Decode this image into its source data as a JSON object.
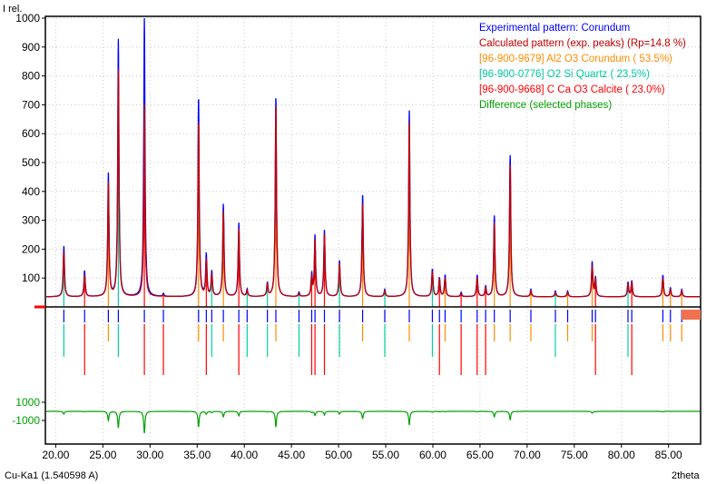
{
  "chart_data": {
    "type": "line",
    "ylabel": "I rel.",
    "xlabel": "2theta",
    "wavelength_label": "Cu-Ka1 (1.540598 A)",
    "xlim": [
      18.9,
      88.4
    ],
    "ylim": [
      0,
      1000
    ],
    "yticks": [
      100,
      200,
      300,
      400,
      500,
      600,
      700,
      800,
      900,
      1000
    ],
    "xticks": [
      20,
      25,
      30,
      35,
      40,
      45,
      50,
      55,
      60,
      65,
      70,
      75,
      80,
      85
    ],
    "xtick_labels": [
      "20.00",
      "25.00",
      "30.00",
      "35.00",
      "40.00",
      "45.00",
      "50.00",
      "55.00",
      "60.00",
      "65.00",
      "70.00",
      "75.00",
      "80.00",
      "85.00"
    ],
    "diff_yticks": [
      1000,
      -1000
    ],
    "diff_ytick_labels": [
      "1000",
      "-1000"
    ],
    "grid": true,
    "legend_position": "top-right",
    "background_level": 35,
    "legend": [
      {
        "text": "Experimental pattern: Corundum",
        "color": "#0000ff"
      },
      {
        "text": "Calculated pattern (exp. peaks) (Rp=14.8 %)",
        "color": "#c00000"
      },
      {
        "text": "[96-900-9679] Al2 O3  Corundum ( 53.5%)",
        "color": "#ff8c00"
      },
      {
        "text": "[96-900-0776] O2 Si  Quartz ( 23.5%)",
        "color": "#00c8a0"
      },
      {
        "text": "[96-900-9668] C Ca O3  Calcite ( 23.0%)",
        "color": "#ff0000"
      },
      {
        "text": "Difference (selected phases)",
        "color": "#00a000"
      }
    ],
    "colors": {
      "experimental": "#0000ff",
      "calculated": "#c00000",
      "corundum": "#ff8c00",
      "quartz": "#00d0a0",
      "calcite": "#ff0000",
      "difference": "#00a000"
    },
    "peaks": [
      {
        "x": 20.86,
        "exp": 210,
        "calc": 190,
        "phase": "quartz",
        "diff": -300
      },
      {
        "x": 23.06,
        "exp": 125,
        "calc": 110,
        "phase": "calcite",
        "diff": -50
      },
      {
        "x": 25.58,
        "exp": 460,
        "calc": 430,
        "phase": "corundum",
        "diff": -1000
      },
      {
        "x": 26.64,
        "exp": 925,
        "calc": 820,
        "phase": "quartz",
        "diff": -1800
      },
      {
        "x": 29.4,
        "exp": 1000,
        "calc": 700,
        "phase": "calcite",
        "diff": -2400
      },
      {
        "x": 31.42,
        "exp": 45,
        "calc": 40,
        "phase": "calcite",
        "diff": 0
      },
      {
        "x": 35.15,
        "exp": 725,
        "calc": 640,
        "phase": "corundum",
        "diff": -1700
      },
      {
        "x": 35.97,
        "exp": 180,
        "calc": 160,
        "phase": "calcite",
        "diff": -300
      },
      {
        "x": 36.55,
        "exp": 120,
        "calc": 110,
        "phase": "quartz",
        "diff": -150
      },
      {
        "x": 37.78,
        "exp": 355,
        "calc": 330,
        "phase": "corundum",
        "diff": -600
      },
      {
        "x": 39.42,
        "exp": 290,
        "calc": 270,
        "phase": "calcite",
        "diff": -500
      },
      {
        "x": 40.3,
        "exp": 60,
        "calc": 55,
        "phase": "quartz",
        "diff": 0
      },
      {
        "x": 42.45,
        "exp": 80,
        "calc": 75,
        "phase": "quartz",
        "diff": -50
      },
      {
        "x": 43.35,
        "exp": 730,
        "calc": 700,
        "phase": "corundum",
        "diff": -1700
      },
      {
        "x": 45.8,
        "exp": 50,
        "calc": 45,
        "phase": "quartz",
        "diff": 0
      },
      {
        "x": 47.15,
        "exp": 110,
        "calc": 100,
        "phase": "calcite",
        "diff": -100
      },
      {
        "x": 47.5,
        "exp": 245,
        "calc": 230,
        "phase": "calcite",
        "diff": -450
      },
      {
        "x": 48.5,
        "exp": 265,
        "calc": 250,
        "phase": "calcite",
        "diff": -400
      },
      {
        "x": 50.1,
        "exp": 160,
        "calc": 150,
        "phase": "quartz",
        "diff": -300
      },
      {
        "x": 52.55,
        "exp": 390,
        "calc": 360,
        "phase": "corundum",
        "diff": -800
      },
      {
        "x": 54.9,
        "exp": 60,
        "calc": 55,
        "phase": "quartz",
        "diff": 0
      },
      {
        "x": 57.5,
        "exp": 680,
        "calc": 640,
        "phase": "corundum",
        "diff": -1500
      },
      {
        "x": 59.95,
        "exp": 130,
        "calc": 120,
        "phase": "quartz",
        "diff": -100
      },
      {
        "x": 60.7,
        "exp": 100,
        "calc": 95,
        "phase": "calcite",
        "diff": -50
      },
      {
        "x": 61.3,
        "exp": 110,
        "calc": 100,
        "phase": "corundum",
        "diff": -50
      },
      {
        "x": 63.0,
        "exp": 50,
        "calc": 45,
        "phase": "calcite",
        "diff": 0
      },
      {
        "x": 64.7,
        "exp": 110,
        "calc": 100,
        "phase": "calcite",
        "diff": -50
      },
      {
        "x": 65.6,
        "exp": 70,
        "calc": 65,
        "phase": "calcite",
        "diff": 0
      },
      {
        "x": 66.52,
        "exp": 315,
        "calc": 290,
        "phase": "corundum",
        "diff": -600
      },
      {
        "x": 68.2,
        "exp": 525,
        "calc": 490,
        "phase": "corundum",
        "diff": -900
      },
      {
        "x": 70.4,
        "exp": 60,
        "calc": 55,
        "phase": "corundum",
        "diff": 0
      },
      {
        "x": 73.0,
        "exp": 55,
        "calc": 50,
        "phase": "quartz",
        "diff": 0
      },
      {
        "x": 74.3,
        "exp": 55,
        "calc": 50,
        "phase": "corundum",
        "diff": 0
      },
      {
        "x": 76.9,
        "exp": 155,
        "calc": 140,
        "phase": "corundum",
        "diff": -200
      },
      {
        "x": 77.25,
        "exp": 100,
        "calc": 95,
        "phase": "calcite",
        "diff": -50
      },
      {
        "x": 80.7,
        "exp": 85,
        "calc": 80,
        "phase": "quartz",
        "diff": 0
      },
      {
        "x": 81.1,
        "exp": 90,
        "calc": 85,
        "phase": "calcite",
        "diff": 0
      },
      {
        "x": 84.4,
        "exp": 110,
        "calc": 100,
        "phase": "corundum",
        "diff": -50
      },
      {
        "x": 85.2,
        "exp": 65,
        "calc": 60,
        "phase": "corundum",
        "diff": 0
      },
      {
        "x": 86.4,
        "exp": 60,
        "calc": 55,
        "phase": "corundum",
        "diff": 0
      }
    ]
  }
}
